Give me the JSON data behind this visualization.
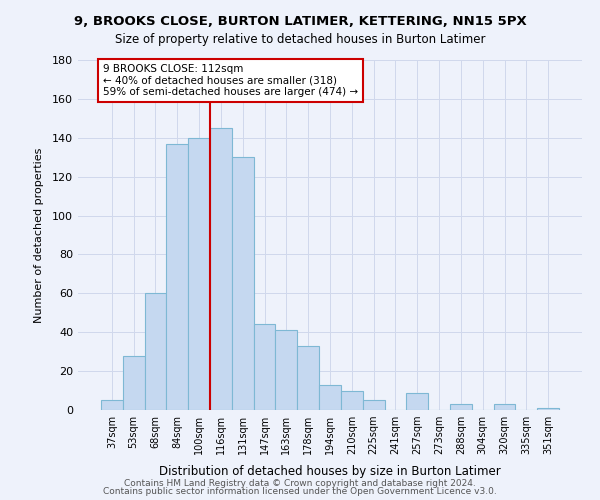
{
  "title1": "9, BROOKS CLOSE, BURTON LATIMER, KETTERING, NN15 5PX",
  "title2": "Size of property relative to detached houses in Burton Latimer",
  "xlabel": "Distribution of detached houses by size in Burton Latimer",
  "ylabel": "Number of detached properties",
  "categories": [
    "37sqm",
    "53sqm",
    "68sqm",
    "84sqm",
    "100sqm",
    "116sqm",
    "131sqm",
    "147sqm",
    "163sqm",
    "178sqm",
    "194sqm",
    "210sqm",
    "225sqm",
    "241sqm",
    "257sqm",
    "273sqm",
    "288sqm",
    "304sqm",
    "320sqm",
    "335sqm",
    "351sqm"
  ],
  "values": [
    5,
    28,
    60,
    137,
    140,
    145,
    130,
    44,
    41,
    33,
    13,
    10,
    5,
    0,
    9,
    0,
    3,
    0,
    3,
    0,
    1
  ],
  "bar_color": "#c5d8f0",
  "bar_edge_color": "#7eb8d4",
  "property_line_color": "#cc0000",
  "property_line_idx": 5,
  "annotation_line1": "9 BROOKS CLOSE: 112sqm",
  "annotation_line2": "← 40% of detached houses are smaller (318)",
  "annotation_line3": "59% of semi-detached houses are larger (474) →",
  "annotation_box_color": "#ffffff",
  "annotation_box_edge": "#cc0000",
  "ylim": [
    0,
    180
  ],
  "yticks": [
    0,
    20,
    40,
    60,
    80,
    100,
    120,
    140,
    160,
    180
  ],
  "footer1": "Contains HM Land Registry data © Crown copyright and database right 2024.",
  "footer2": "Contains public sector information licensed under the Open Government Licence v3.0.",
  "background_color": "#eef2fb",
  "grid_color": "#d0d8ec"
}
